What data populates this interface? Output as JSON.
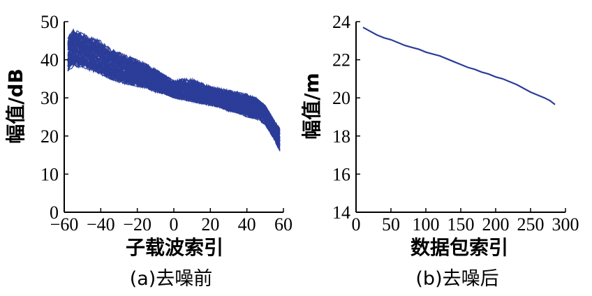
{
  "colors": {
    "series": "#2b3d99",
    "axis": "#000000"
  },
  "chart_data": [
    {
      "type": "line",
      "caption": "(a)去噪前",
      "xlabel": "子载波索引",
      "ylabel": "幅值/dB",
      "xlim": [
        -60,
        60
      ],
      "ylim": [
        0,
        50
      ],
      "xticks": [
        "−60",
        "−40",
        "−20",
        "0",
        "20",
        "40",
        "60"
      ],
      "yticks": [
        "0",
        "10",
        "20",
        "30",
        "40",
        "50"
      ],
      "grid": false,
      "band": {
        "x": [
          -58,
          -55,
          -50,
          -45,
          -40,
          -35,
          -30,
          -25,
          -20,
          -15,
          -10,
          -5,
          0,
          5,
          10,
          15,
          20,
          25,
          30,
          35,
          40,
          45,
          50,
          55,
          58
        ],
        "upper": [
          46,
          48,
          47,
          46,
          45,
          43,
          42,
          41,
          40,
          39,
          37.5,
          36,
          34.5,
          35,
          35,
          34,
          33,
          32.5,
          32,
          31.5,
          31,
          30,
          28,
          24,
          22
        ],
        "lower": [
          37,
          38,
          38,
          37,
          36,
          35,
          34,
          33.5,
          33,
          32.5,
          31.5,
          31,
          30,
          29.5,
          29,
          28.5,
          28,
          27.5,
          26.5,
          26,
          25,
          24.5,
          23,
          19,
          16
        ],
        "center": [
          42,
          43.5,
          42.5,
          41.5,
          40.5,
          39,
          38,
          37,
          36.5,
          35.5,
          34.5,
          33.5,
          32,
          32,
          31.5,
          31,
          30.5,
          30,
          29.5,
          28.5,
          28,
          27.5,
          26,
          22,
          19.5
        ],
        "line_count": 80
      }
    },
    {
      "type": "line",
      "caption": "(b)去噪后",
      "xlabel": "数据包索引",
      "ylabel": "幅值/m",
      "xlim": [
        0,
        300
      ],
      "ylim": [
        14,
        24
      ],
      "xticks": [
        "0",
        "50",
        "100",
        "150",
        "200",
        "250",
        "300"
      ],
      "yticks": [
        "14",
        "16",
        "18",
        "20",
        "22",
        "24"
      ],
      "grid": false,
      "series": [
        {
          "x": [
            10,
            20,
            30,
            40,
            50,
            60,
            70,
            80,
            90,
            100,
            110,
            120,
            130,
            140,
            150,
            160,
            170,
            180,
            190,
            200,
            210,
            220,
            230,
            240,
            250,
            260,
            270,
            278,
            285
          ],
          "y": [
            23.7,
            23.5,
            23.3,
            23.15,
            23.05,
            22.9,
            22.75,
            22.65,
            22.55,
            22.4,
            22.3,
            22.2,
            22.05,
            21.9,
            21.75,
            21.6,
            21.5,
            21.35,
            21.25,
            21.1,
            21.0,
            20.85,
            20.7,
            20.5,
            20.3,
            20.15,
            20.0,
            19.85,
            19.65
          ]
        }
      ]
    }
  ]
}
